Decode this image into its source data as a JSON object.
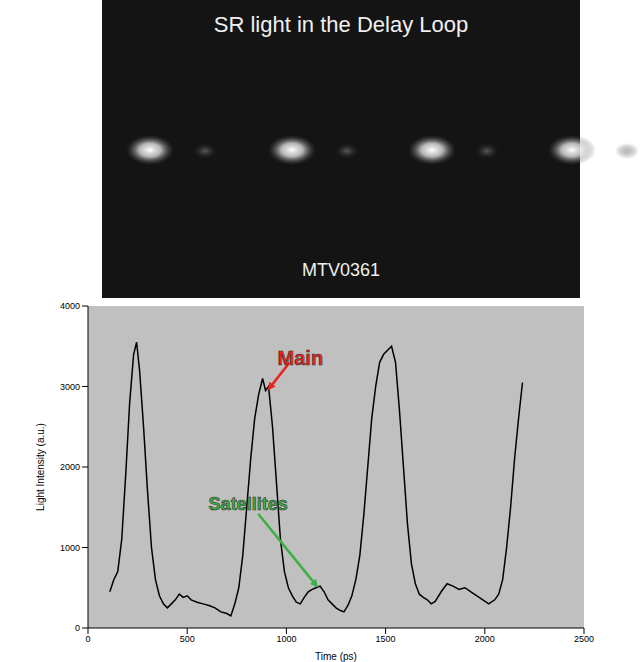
{
  "image": {
    "title": "SR light in the Delay Loop",
    "label": "MTV0361"
  },
  "chart_data": {
    "type": "line",
    "x_label": "Time (ps)",
    "y_label": "Light Intensity (a.u.)",
    "xlim": [
      0,
      2500
    ],
    "xticks": [
      0,
      500,
      1000,
      1500,
      2000,
      2500
    ],
    "ylim": [
      0,
      4000
    ],
    "yticks": [
      0,
      1000,
      2000,
      3000,
      4000
    ],
    "grid": false,
    "color": "#000000",
    "x": [
      110,
      130,
      150,
      170,
      190,
      210,
      230,
      245,
      260,
      280,
      300,
      320,
      340,
      360,
      380,
      400,
      420,
      440,
      460,
      480,
      500,
      520,
      550,
      580,
      610,
      640,
      670,
      700,
      720,
      740,
      760,
      780,
      800,
      820,
      840,
      860,
      880,
      895,
      910,
      930,
      950,
      970,
      990,
      1010,
      1030,
      1050,
      1070,
      1090,
      1110,
      1130,
      1150,
      1170,
      1190,
      1210,
      1230,
      1250,
      1270,
      1290,
      1310,
      1330,
      1350,
      1370,
      1390,
      1410,
      1430,
      1450,
      1470,
      1490,
      1510,
      1530,
      1550,
      1570,
      1590,
      1610,
      1630,
      1650,
      1670,
      1690,
      1710,
      1730,
      1750,
      1780,
      1810,
      1840,
      1870,
      1900,
      1930,
      1960,
      1990,
      2020,
      2050,
      2070,
      2090,
      2110,
      2130,
      2150,
      2170,
      2190
    ],
    "values": [
      450,
      600,
      700,
      1100,
      1900,
      2800,
      3400,
      3550,
      3200,
      2500,
      1700,
      1000,
      600,
      400,
      300,
      250,
      300,
      350,
      420,
      380,
      400,
      350,
      320,
      300,
      280,
      250,
      200,
      180,
      150,
      300,
      500,
      900,
      1500,
      2100,
      2600,
      2900,
      3100,
      2950,
      3000,
      2500,
      1800,
      1100,
      700,
      500,
      400,
      320,
      300,
      380,
      450,
      480,
      500,
      520,
      450,
      350,
      300,
      250,
      220,
      200,
      280,
      400,
      600,
      900,
      1400,
      2000,
      2600,
      3000,
      3300,
      3400,
      3450,
      3500,
      3300,
      2700,
      2000,
      1300,
      800,
      550,
      420,
      380,
      350,
      300,
      330,
      450,
      550,
      520,
      480,
      500,
      450,
      400,
      350,
      300,
      350,
      420,
      600,
      1000,
      1500,
      2100,
      2600,
      3050
    ],
    "annotations": [
      {
        "text": "Main",
        "color": "#e8251c",
        "x": 905,
        "y": 2950
      },
      {
        "text": "Satellites",
        "color": "#3cb043",
        "x": 1160,
        "y": 500
      }
    ]
  }
}
